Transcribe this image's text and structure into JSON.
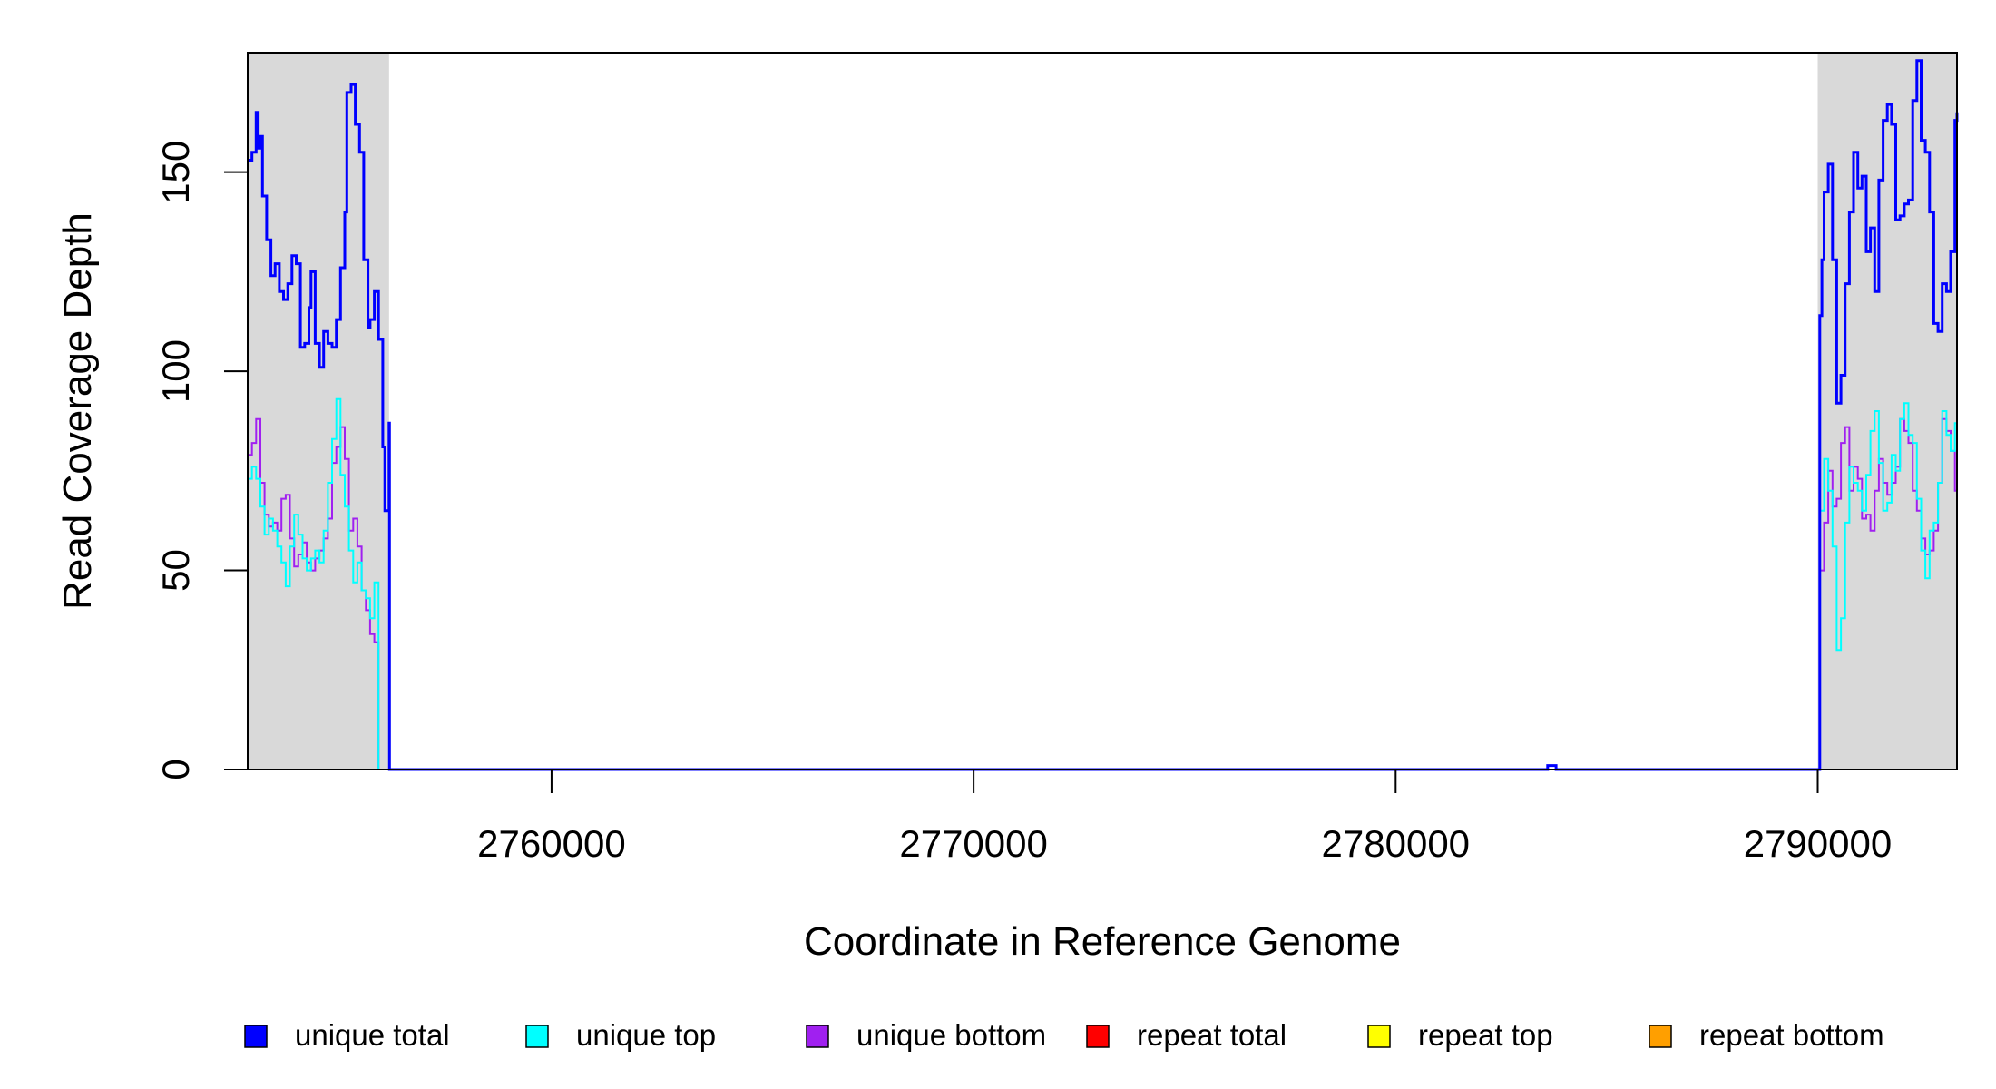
{
  "chart_data": {
    "type": "line",
    "title": "",
    "xlabel": "Coordinate in Reference Genome",
    "ylabel": "Read Coverage Depth",
    "xlim": [
      2752800,
      2793300
    ],
    "ylim": [
      0,
      180
    ],
    "xticks": [
      2760000,
      2770000,
      2780000,
      2790000
    ],
    "xtick_labels": [
      "2760000",
      "2770000",
      "2780000",
      "2790000"
    ],
    "yticks": [
      0,
      50,
      100,
      150
    ],
    "ytick_labels": [
      "0",
      "50",
      "100",
      "150"
    ],
    "grid": false,
    "legend_position": "bottom",
    "shaded_regions": [
      {
        "x0": 2752800,
        "x1": 2756150,
        "color": "#d9d9d9"
      },
      {
        "x0": 2790000,
        "x1": 2793300,
        "color": "#d9d9d9"
      }
    ],
    "series": [
      {
        "name": "unique total",
        "color": "#0000ff",
        "width": 3,
        "x": [
          2752800,
          2752900,
          2753000,
          2753050,
          2753100,
          2753150,
          2753250,
          2753350,
          2753450,
          2753550,
          2753650,
          2753750,
          2753850,
          2753950,
          2754050,
          2754150,
          2754250,
          2754300,
          2754400,
          2754500,
          2754600,
          2754700,
          2754800,
          2754900,
          2755000,
          2755100,
          2755150,
          2755250,
          2755350,
          2755450,
          2755550,
          2755650,
          2755700,
          2755800,
          2755900,
          2756000,
          2756050,
          2756150,
          2756160,
          2783500,
          2783600,
          2783700,
          2783800,
          2790000,
          2790050,
          2790100,
          2790150,
          2790250,
          2790350,
          2790450,
          2790550,
          2790650,
          2790750,
          2790850,
          2790950,
          2791050,
          2791150,
          2791250,
          2791350,
          2791450,
          2791550,
          2791650,
          2791750,
          2791850,
          2791950,
          2792050,
          2792150,
          2792250,
          2792350,
          2792450,
          2792550,
          2792650,
          2792750,
          2792850,
          2792950,
          2793050,
          2793150,
          2793250,
          2793300
        ],
        "values": [
          153,
          155,
          165,
          156,
          159,
          144,
          133,
          124,
          127,
          120,
          118,
          122,
          129,
          127,
          106,
          107,
          116,
          125,
          107,
          101,
          110,
          107,
          106,
          113,
          126,
          140,
          170,
          172,
          162,
          155,
          128,
          111,
          113,
          120,
          108,
          81,
          65,
          87,
          0,
          0,
          1,
          1,
          0,
          0,
          114,
          128,
          145,
          152,
          128,
          92,
          99,
          122,
          140,
          155,
          146,
          149,
          130,
          136,
          120,
          148,
          163,
          167,
          162,
          138,
          139,
          142,
          143,
          168,
          178,
          158,
          155,
          140,
          112,
          110,
          122,
          120,
          130,
          163,
          165
        ]
      },
      {
        "name": "unique top",
        "color": "#00ffff",
        "width": 2,
        "x": [
          2752800,
          2752900,
          2753000,
          2753100,
          2753200,
          2753300,
          2753400,
          2753500,
          2753600,
          2753700,
          2753800,
          2753900,
          2754000,
          2754100,
          2754200,
          2754300,
          2754400,
          2754500,
          2754600,
          2754700,
          2754800,
          2754900,
          2755000,
          2755100,
          2755200,
          2755300,
          2755400,
          2755500,
          2755600,
          2755700,
          2755800,
          2755900,
          2756000,
          2756100,
          2756160,
          2790000,
          2790050,
          2790150,
          2790250,
          2790350,
          2790450,
          2790550,
          2790650,
          2790750,
          2790850,
          2790950,
          2791050,
          2791150,
          2791250,
          2791350,
          2791450,
          2791550,
          2791650,
          2791750,
          2791850,
          2791950,
          2792050,
          2792150,
          2792250,
          2792350,
          2792450,
          2792550,
          2792650,
          2792750,
          2792850,
          2792950,
          2793050,
          2793150,
          2793250,
          2793300
        ],
        "values": [
          73,
          76,
          73,
          66,
          59,
          63,
          60,
          56,
          52,
          46,
          56,
          64,
          59,
          53,
          50,
          53,
          55,
          52,
          60,
          72,
          83,
          93,
          74,
          66,
          55,
          47,
          52,
          45,
          43,
          38,
          47,
          0,
          0,
          0,
          0,
          0,
          65,
          78,
          70,
          56,
          30,
          38,
          62,
          76,
          72,
          70,
          65,
          74,
          85,
          90,
          77,
          65,
          67,
          79,
          75,
          88,
          92,
          84,
          82,
          68,
          55,
          48,
          60,
          62,
          72,
          90,
          84,
          80,
          87,
          91
        ]
      },
      {
        "name": "unique bottom",
        "color": "#a020f0",
        "width": 2,
        "x": [
          2752800,
          2752900,
          2753000,
          2753100,
          2753200,
          2753300,
          2753400,
          2753500,
          2753600,
          2753700,
          2753800,
          2753900,
          2754000,
          2754100,
          2754200,
          2754300,
          2754400,
          2754500,
          2754600,
          2754700,
          2754800,
          2754900,
          2755000,
          2755100,
          2755200,
          2755300,
          2755400,
          2755500,
          2755600,
          2755700,
          2755800,
          2755900,
          2756000,
          2756100,
          2756160,
          2790000,
          2790050,
          2790150,
          2790250,
          2790350,
          2790450,
          2790550,
          2790650,
          2790750,
          2790850,
          2790950,
          2791050,
          2791150,
          2791250,
          2791350,
          2791450,
          2791550,
          2791650,
          2791750,
          2791850,
          2791950,
          2792050,
          2792150,
          2792250,
          2792350,
          2792450,
          2792550,
          2792650,
          2792750,
          2792850,
          2792950,
          2793050,
          2793150,
          2793250,
          2793300
        ],
        "values": [
          79,
          82,
          88,
          72,
          64,
          61,
          62,
          60,
          68,
          69,
          58,
          51,
          54,
          57,
          52,
          50,
          53,
          55,
          58,
          63,
          77,
          81,
          86,
          78,
          60,
          63,
          56,
          45,
          40,
          34,
          32,
          0,
          0,
          0,
          0,
          0,
          50,
          62,
          75,
          66,
          68,
          82,
          86,
          70,
          76,
          73,
          63,
          64,
          60,
          70,
          78,
          72,
          69,
          72,
          76,
          88,
          85,
          82,
          70,
          65,
          58,
          54,
          55,
          60,
          72,
          88,
          85,
          80,
          70,
          73
        ]
      },
      {
        "name": "repeat total",
        "color": "#ff0000",
        "width": 2,
        "x": [
          2752800,
          2793300
        ],
        "values": [
          0,
          0
        ]
      },
      {
        "name": "repeat top",
        "color": "#ffff00",
        "width": 2,
        "x": [
          2752800,
          2793300
        ],
        "values": [
          0,
          0
        ]
      },
      {
        "name": "repeat bottom",
        "color": "#ff9f00",
        "width": 2,
        "x": [
          2752800,
          2793300
        ],
        "values": [
          0,
          0
        ]
      }
    ]
  }
}
